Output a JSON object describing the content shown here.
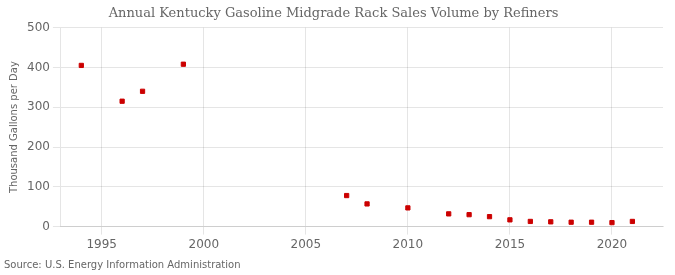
{
  "chart_data": {
    "type": "scatter",
    "title": "Annual Kentucky Gasoline Midgrade Rack Sales Volume by Refiners",
    "ylabel": "Thousand Gallons per Day",
    "annotation": "Source: U.S. Energy Information Administration",
    "x": [
      1994,
      1996,
      1997,
      1999,
      2007,
      2008,
      2010,
      2012,
      2013,
      2014,
      2015,
      2016,
      2017,
      2018,
      2019,
      2020,
      2021
    ],
    "values": [
      405,
      315,
      340,
      408,
      78,
      57,
      47,
      32,
      30,
      25,
      17,
      13,
      12,
      11,
      11,
      10,
      13
    ],
    "color": "#cc0000",
    "marker": "square",
    "xlim": [
      1993,
      2022.5
    ],
    "xticks": [
      1995,
      2000,
      2005,
      2010,
      2015,
      2020
    ],
    "ylim": [
      0,
      500
    ],
    "yticks": [
      0,
      100,
      200,
      300,
      400,
      500
    ],
    "grid": true
  }
}
